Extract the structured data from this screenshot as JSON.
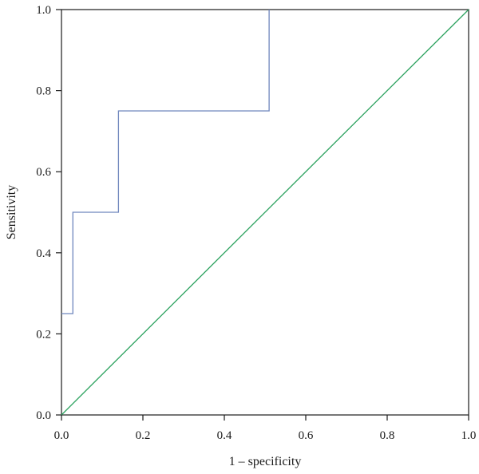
{
  "chart_data": {
    "type": "line",
    "title": "",
    "xlabel": "1 – specificity",
    "ylabel": "Sensitivity",
    "xlim": [
      0,
      1
    ],
    "ylim": [
      0,
      1
    ],
    "x_ticks": [
      "0.0",
      "0.2",
      "0.4",
      "0.6",
      "0.8",
      "1.0"
    ],
    "y_ticks": [
      "0.0",
      "0.2",
      "0.4",
      "0.6",
      "0.8",
      "1.0"
    ],
    "grid": false,
    "legend": "none",
    "series": [
      {
        "color": "#6f86bd",
        "step": true,
        "points": [
          {
            "x": 0.0,
            "y": 0.25
          },
          {
            "x": 0.028,
            "y": 0.25
          },
          {
            "x": 0.028,
            "y": 0.5
          },
          {
            "x": 0.14,
            "y": 0.5
          },
          {
            "x": 0.14,
            "y": 0.75
          },
          {
            "x": 0.51,
            "y": 0.75
          },
          {
            "x": 0.51,
            "y": 1.0
          }
        ]
      },
      {
        "color": "#2ca25f",
        "step": false,
        "points": [
          {
            "x": 0.0,
            "y": 0.0
          },
          {
            "x": 1.0,
            "y": 1.0
          }
        ]
      }
    ]
  }
}
